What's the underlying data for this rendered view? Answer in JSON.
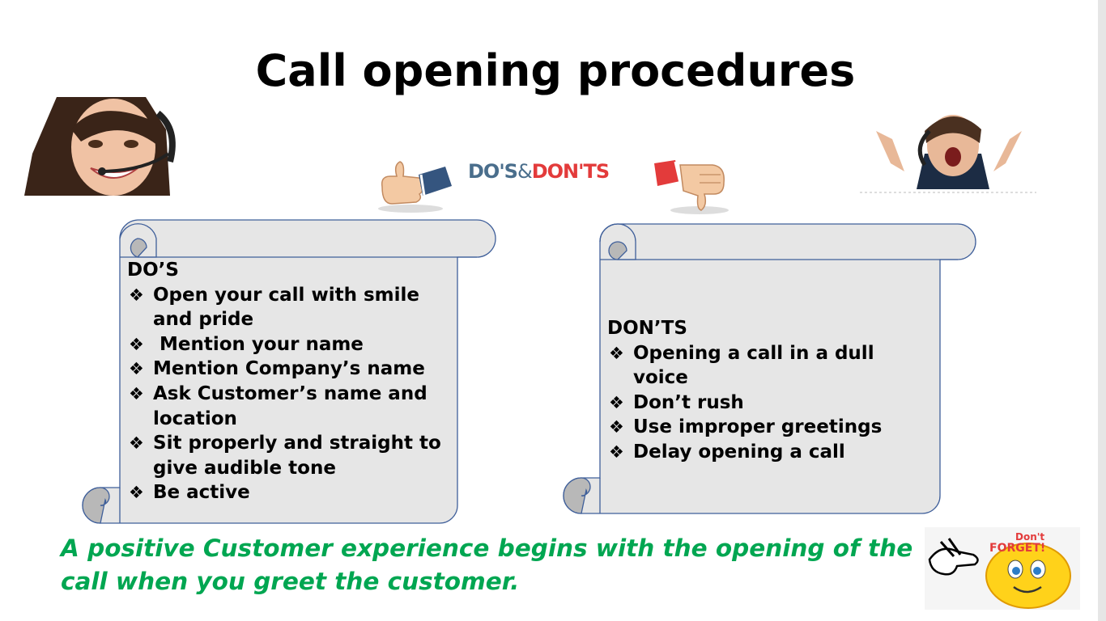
{
  "title": "Call opening procedures",
  "badge": {
    "do": "DO'S",
    "amp": "&",
    "dont": "DON'TS"
  },
  "dos": {
    "heading": "DO’S",
    "items": [
      "Open your call with smile and pride",
      " Mention your name",
      "Mention Company’s name",
      "Ask Customer’s name  and location",
      "Sit properly and straight to give audible tone",
      "Be active"
    ]
  },
  "donts": {
    "heading": "DON’TS",
    "items": [
      "Opening a call in a dull voice",
      "Don’t rush",
      "Use improper greetings",
      "Delay opening a call"
    ]
  },
  "footer": "A positive Customer experience begins with the  opening of the call when you greet the customer.",
  "sticker": {
    "line1": "Don't",
    "line2": "FORGET!"
  },
  "colors": {
    "green": "#00a651",
    "scroll_fill": "#e6e6e6",
    "scroll_stroke": "#3f5f9a",
    "red": "#e33b3b"
  }
}
